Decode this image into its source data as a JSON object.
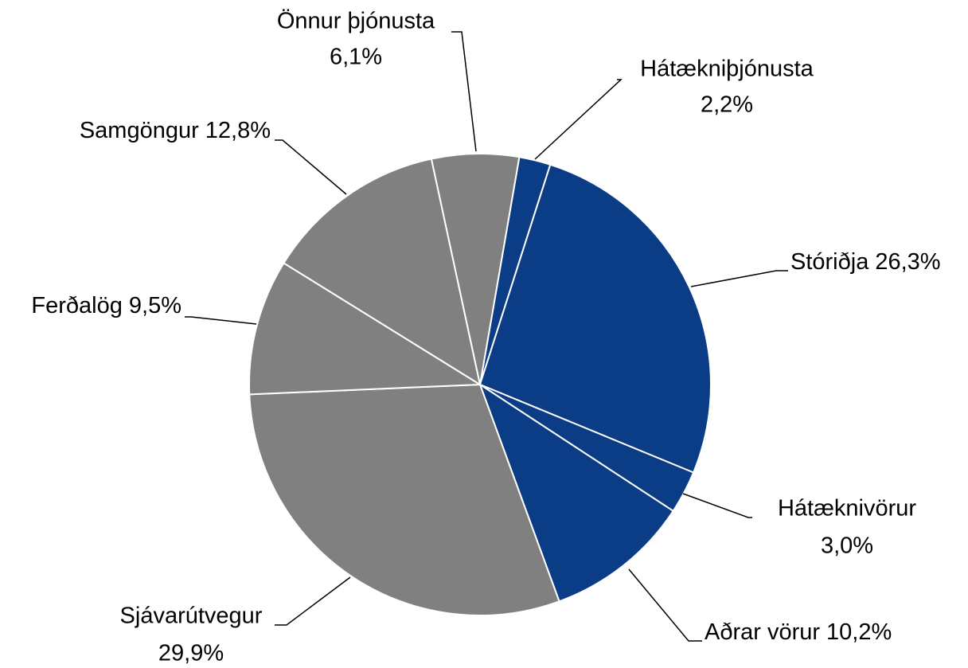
{
  "chart_data": {
    "type": "pie",
    "categories": [
      "Hátækniþjónusta",
      "Stóriðja",
      "Hátæknivörur",
      "Aðrar vörur",
      "Sjávarútvegur",
      "Ferðalög",
      "Samgöngur",
      "Önnur þjónusta"
    ],
    "values": [
      2.2,
      26.3,
      3.0,
      10.2,
      29.9,
      9.5,
      12.8,
      6.1
    ],
    "value_labels": [
      "2,2%",
      "26,3%",
      "3,0%",
      "10,2%",
      "29,9%",
      "9,5%",
      "12,8%",
      "6,1%"
    ],
    "colors": [
      "#0b3c86",
      "#0b3c86",
      "#0b3c86",
      "#0b3c86",
      "#808080",
      "#808080",
      "#808080",
      "#808080"
    ]
  }
}
